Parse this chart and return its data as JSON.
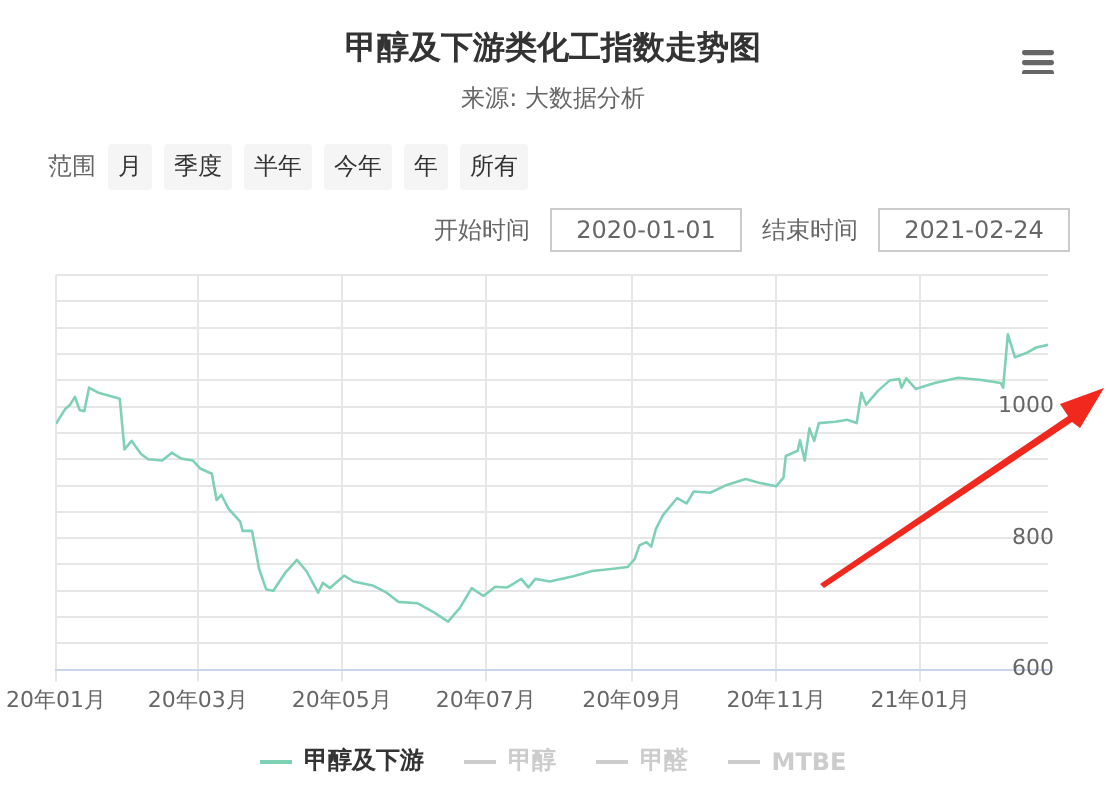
{
  "chart_data": {
    "type": "line",
    "title": "甲醇及下游类化工指数走势图",
    "subtitle": "来源: 大数据分析",
    "annotations": [
      "范围",
      "月",
      "季度",
      "半年",
      "今年",
      "年",
      "所有",
      "开始时间",
      "2020-01-01",
      "结束时间",
      "2021-02-24"
    ],
    "x": [
      "2020-01-01",
      "2020-01-05",
      "2020-01-07",
      "2020-01-09",
      "2020-01-11",
      "2020-01-13",
      "2020-01-15",
      "2020-01-19",
      "2020-01-28",
      "2020-01-30",
      "2020-02-02",
      "2020-02-06",
      "2020-02-09",
      "2020-02-15",
      "2020-02-19",
      "2020-02-23",
      "2020-02-28",
      "2020-03-02",
      "2020-03-07",
      "2020-03-09",
      "2020-03-11",
      "2020-03-14",
      "2020-03-19",
      "2020-03-20",
      "2020-03-24",
      "2020-03-27",
      "2020-03-30",
      "2020-04-02",
      "2020-04-07",
      "2020-04-12",
      "2020-04-16",
      "2020-04-21",
      "2020-04-23",
      "2020-04-26",
      "2020-05-02",
      "2020-05-06",
      "2020-05-14",
      "2020-05-20",
      "2020-05-25",
      "2020-06-02",
      "2020-06-09",
      "2020-06-15",
      "2020-06-20",
      "2020-06-25",
      "2020-06-30",
      "2020-07-05",
      "2020-07-10",
      "2020-07-16",
      "2020-07-19",
      "2020-07-22",
      "2020-07-28",
      "2020-08-07",
      "2020-08-15",
      "2020-08-23",
      "2020-08-30",
      "2020-09-02",
      "2020-09-04",
      "2020-09-07",
      "2020-09-09",
      "2020-09-11",
      "2020-09-14",
      "2020-09-20",
      "2020-09-24",
      "2020-09-27",
      "2020-10-04",
      "2020-10-11",
      "2020-10-19",
      "2020-10-25",
      "2020-11-01",
      "2020-11-04",
      "2020-11-05",
      "2020-11-10",
      "2020-11-11",
      "2020-11-13",
      "2020-11-15",
      "2020-11-17",
      "2020-11-19",
      "2020-11-26",
      "2020-12-01",
      "2020-12-05",
      "2020-12-07",
      "2020-12-09",
      "2020-12-14",
      "2020-12-19",
      "2020-12-23",
      "2020-12-24",
      "2020-12-26",
      "2020-12-30",
      "2021-01-07",
      "2021-01-17",
      "2021-01-26",
      "2021-02-04",
      "2021-02-05",
      "2021-02-07",
      "2021-02-10",
      "2021-02-15",
      "2021-02-19",
      "2021-02-24"
    ],
    "series": [
      {
        "name": "甲醇及下游",
        "color": "#7fd1b3",
        "values": [
          974,
          997,
          1003,
          1015,
          995,
          993,
          1029,
          1021,
          1012,
          935,
          948,
          928,
          920,
          918,
          930,
          921,
          918,
          906,
          898,
          858,
          866,
          845,
          825,
          811,
          811,
          753,
          722,
          720,
          747,
          767,
          750,
          717,
          732,
          724,
          743,
          734,
          728,
          717,
          703,
          701,
          687,
          673,
          694,
          724,
          712,
          726,
          725,
          738,
          725,
          738,
          734,
          742,
          750,
          753,
          756,
          768,
          789,
          794,
          787,
          814,
          835,
          861,
          853,
          871,
          869,
          881,
          890,
          884,
          879,
          892,
          925,
          933,
          949,
          918,
          967,
          948,
          975,
          977,
          980,
          975,
          1021,
          1003,
          1024,
          1040,
          1042,
          1029,
          1043,
          1027,
          1036,
          1044,
          1041,
          1036,
          1029,
          1110,
          1075,
          1082,
          1090,
          1094
        ]
      },
      {
        "name": "甲醇",
        "color": "#cccccc",
        "values": [
          null,
          null,
          null,
          null,
          null,
          null,
          null,
          null,
          null,
          null,
          null,
          null,
          null,
          null,
          null,
          null,
          null,
          null,
          null,
          null,
          null,
          null,
          null,
          null,
          null,
          null,
          null,
          null,
          null,
          null,
          null,
          null,
          null,
          null,
          null,
          null,
          null,
          null,
          null,
          null,
          null,
          null,
          null,
          null,
          null,
          null,
          null,
          null,
          null,
          null,
          null,
          null,
          null,
          null,
          null,
          null,
          null,
          null,
          null,
          null,
          null,
          null,
          null,
          null,
          null,
          null,
          null,
          null,
          null,
          null,
          null,
          null,
          null,
          null,
          null,
          null,
          null,
          null,
          null,
          null,
          null,
          null,
          null,
          null,
          null,
          null,
          null,
          null,
          null,
          null,
          null,
          null,
          null,
          null,
          null,
          null,
          null,
          null
        ]
      },
      {
        "name": "甲醛",
        "color": "#cccccc",
        "values": [
          null,
          null,
          null,
          null,
          null,
          null,
          null,
          null,
          null,
          null,
          null,
          null,
          null,
          null,
          null,
          null,
          null,
          null,
          null,
          null,
          null,
          null,
          null,
          null,
          null,
          null,
          null,
          null,
          null,
          null,
          null,
          null,
          null,
          null,
          null,
          null,
          null,
          null,
          null,
          null,
          null,
          null,
          null,
          null,
          null,
          null,
          null,
          null,
          null,
          null,
          null,
          null,
          null,
          null,
          null,
          null,
          null,
          null,
          null,
          null,
          null,
          null,
          null,
          null,
          null,
          null,
          null,
          null,
          null,
          null,
          null,
          null,
          null,
          null,
          null,
          null,
          null,
          null,
          null,
          null,
          null,
          null,
          null,
          null,
          null,
          null,
          null,
          null,
          null,
          null,
          null,
          null,
          null,
          null,
          null,
          null,
          null,
          null
        ]
      },
      {
        "name": "MTBE",
        "color": "#cccccc",
        "values": [
          null,
          null,
          null,
          null,
          null,
          null,
          null,
          null,
          null,
          null,
          null,
          null,
          null,
          null,
          null,
          null,
          null,
          null,
          null,
          null,
          null,
          null,
          null,
          null,
          null,
          null,
          null,
          null,
          null,
          null,
          null,
          null,
          null,
          null,
          null,
          null,
          null,
          null,
          null,
          null,
          null,
          null,
          null,
          null,
          null,
          null,
          null,
          null,
          null,
          null,
          null,
          null,
          null,
          null,
          null,
          null,
          null,
          null,
          null,
          null,
          null,
          null,
          null,
          null,
          null,
          null,
          null,
          null,
          null,
          null,
          null,
          null,
          null,
          null,
          null,
          null,
          null,
          null,
          null,
          null,
          null,
          null,
          null,
          null,
          null,
          null,
          null,
          null,
          null,
          null,
          null,
          null,
          null,
          null,
          null,
          null,
          null,
          null
        ]
      }
    ],
    "xlim": [
      "2020-01-01",
      "2021-02-24"
    ],
    "xticks": [
      {
        "value": "2020-01-01",
        "label": "20年01月"
      },
      {
        "value": "2020-03-01",
        "label": "20年03月"
      },
      {
        "value": "2020-05-01",
        "label": "20年05月"
      },
      {
        "value": "2020-07-01",
        "label": "20年07月"
      },
      {
        "value": "2020-09-01",
        "label": "20年09月"
      },
      {
        "value": "2020-11-01",
        "label": "20年11月"
      },
      {
        "value": "2021-01-01",
        "label": "21年01月"
      }
    ],
    "ylim": [
      600,
      1200
    ],
    "yticks": [
      600,
      {
        "value": 640,
        "label": null
      },
      {
        "value": 680,
        "label": null
      },
      {
        "value": 720,
        "label": null
      },
      {
        "value": 760,
        "label": null
      },
      800,
      {
        "value": 840,
        "label": null
      },
      {
        "value": 880,
        "label": null
      },
      {
        "value": 920,
        "label": null
      },
      {
        "value": 960,
        "label": null
      },
      1000,
      {
        "value": 1040,
        "label": null
      },
      {
        "value": 1080,
        "label": null
      },
      {
        "value": 1120,
        "label": null
      },
      {
        "value": 1160,
        "label": null
      },
      {
        "value": 1200,
        "label": null
      }
    ],
    "grid": true,
    "legend": "bottom",
    "marker": "none",
    "line_style": "solid"
  }
}
